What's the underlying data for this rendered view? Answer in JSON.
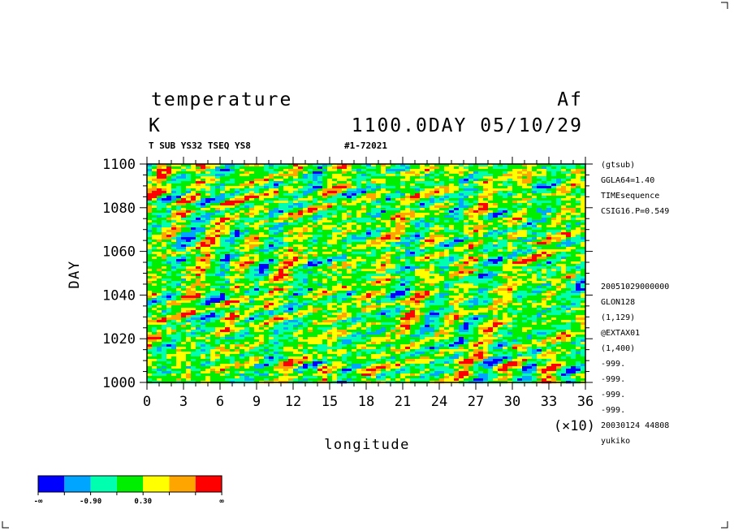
{
  "header": {
    "title_left": "temperature",
    "title_right": "Af",
    "unit": "K",
    "time_info": "1100.0DAY 05/10/29",
    "sub_left": "T SUB YS32 TSEQ YS8",
    "sub_right": "#1-72021"
  },
  "axes": {
    "xlabel": "longitude",
    "xscale": "(×10)",
    "ylabel": "DAY"
  },
  "side_info": {
    "top": [
      "(gtsub)",
      "GGLA64=1.40",
      "TIMEsequence",
      "CSIG16.P=0.549"
    ],
    "bottom": [
      "20051029000000",
      "GLON128",
      "(1,129)",
      "@EXTAX01",
      "(1,400)",
      "-999.",
      "-999.",
      "-999.",
      "-999.",
      "20030124  44808",
      "yukiko"
    ]
  },
  "legend": {
    "colors": [
      "#0000ff",
      "#00a5ff",
      "#00ffaf",
      "#00ee00",
      "#ffff00",
      "#ffa500",
      "#ff0000"
    ],
    "labels": [
      "-∞",
      "-0.90",
      "0.30",
      "∞"
    ]
  },
  "chart_data": {
    "type": "heatmap",
    "title": "temperature",
    "xlabel": "longitude",
    "ylabel": "DAY",
    "x_ticks": [
      0,
      3,
      6,
      9,
      12,
      15,
      18,
      21,
      24,
      27,
      30,
      33,
      36
    ],
    "y_ticks": [
      1000,
      1020,
      1040,
      1060,
      1080,
      1100
    ],
    "xlim": [
      0,
      36
    ],
    "ylim": [
      1000,
      1100
    ],
    "x_multiplier": 10,
    "contour_levels": [
      "-∞",
      "-0.90",
      "0.30",
      "∞"
    ],
    "colors": [
      "#0000ff",
      "#00a5ff",
      "#00ffaf",
      "#00ee00",
      "#ffff00",
      "#ffa500",
      "#ff0000"
    ]
  }
}
